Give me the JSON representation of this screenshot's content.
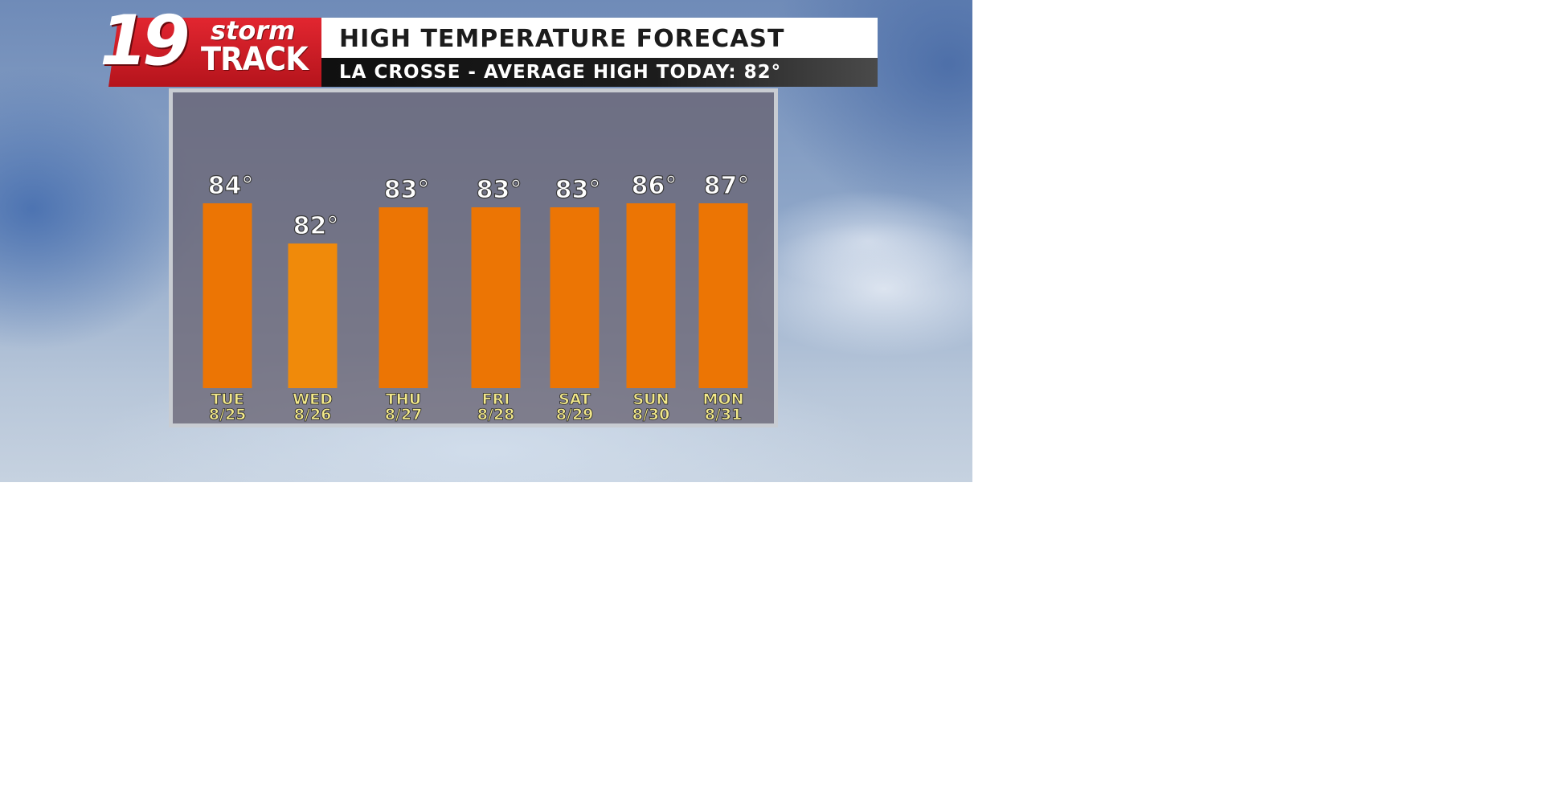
{
  "broadcast": {
    "logo": {
      "number": "19",
      "word1": "storm",
      "word2": "TRACK"
    },
    "title": "HIGH TEMPERATURE FORECAST",
    "subtitle": "LA CROSSE - AVERAGE HIGH TODAY: 82°"
  },
  "chart_data": {
    "type": "bar",
    "categories": [
      "TUE",
      "WED",
      "THU",
      "FRI",
      "SAT",
      "SUN",
      "MON"
    ],
    "dates": [
      "8/25",
      "8/26",
      "8/27",
      "8/28",
      "8/29",
      "8/30",
      "8/31"
    ],
    "values": [
      84,
      82,
      83,
      83,
      83,
      86,
      87
    ],
    "value_labels": [
      "84°",
      "82°",
      "83°",
      "83°",
      "83°",
      "86°",
      "87°"
    ],
    "grid": false,
    "colors": {
      "bar": "#ec7504",
      "bar_highlight": "#f08a0a",
      "label": "#ffffff",
      "day_label": "#f3e98a"
    }
  }
}
